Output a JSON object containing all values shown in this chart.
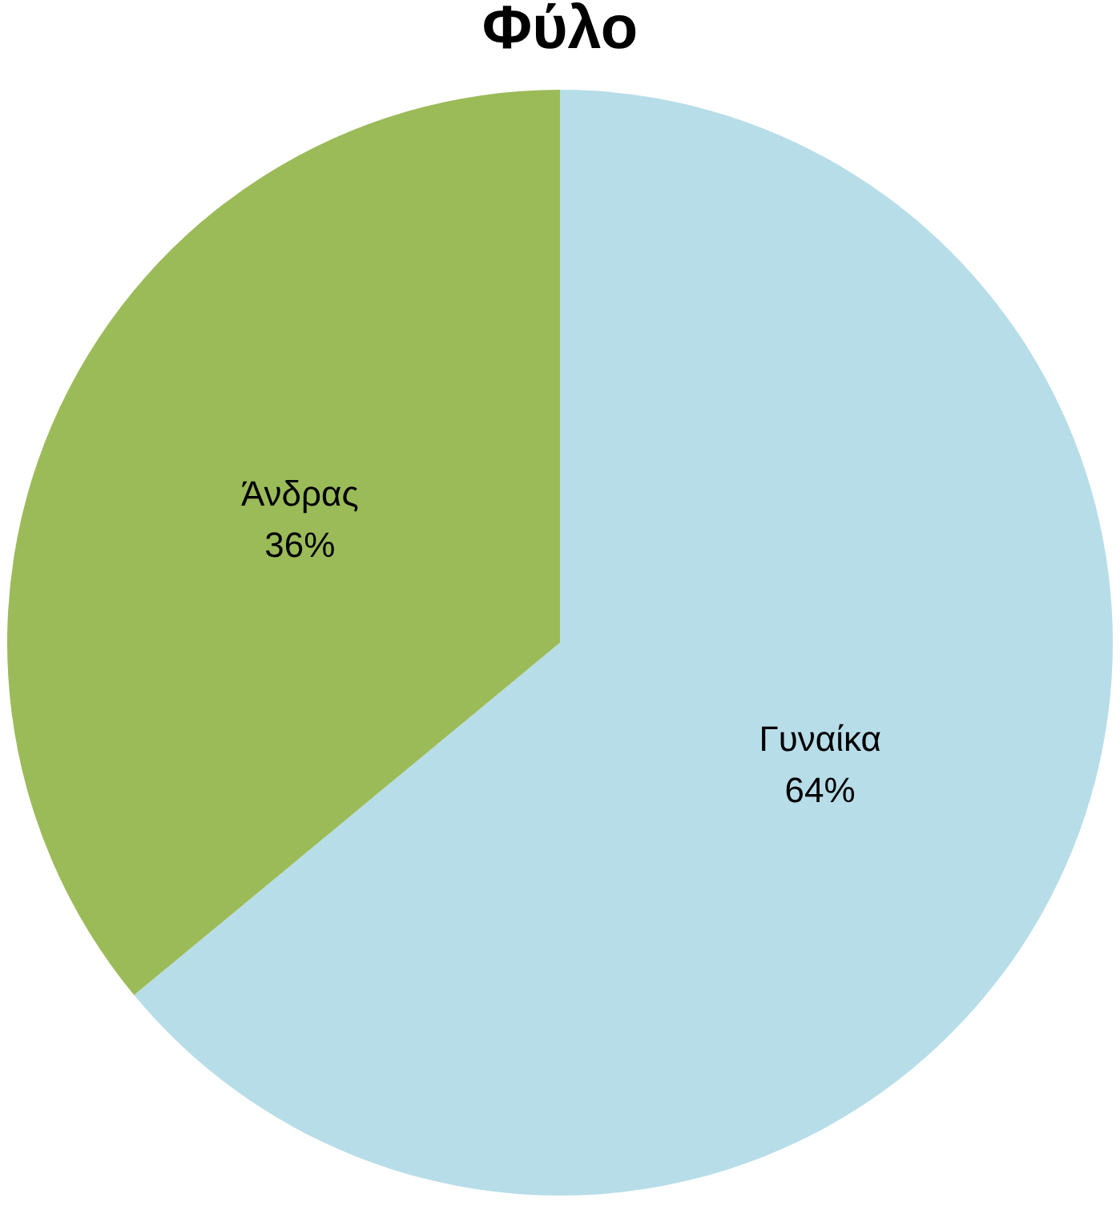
{
  "chart_data": {
    "type": "pie",
    "title": "Φύλο",
    "categories": [
      "Γυναίκα",
      "Άνδρας"
    ],
    "values": [
      64,
      36
    ],
    "colors": [
      "#b7dde8",
      "#9bbb59"
    ],
    "value_labels": [
      "64%",
      "36%"
    ],
    "legend": false
  }
}
